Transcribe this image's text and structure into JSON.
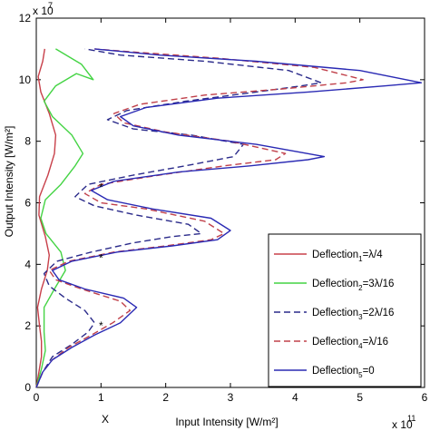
{
  "chart_data": {
    "type": "line",
    "title": "",
    "xlabel": "Input Intensity [W/m²]",
    "ylabel": "Output Intensity [W/m²]",
    "x_exponent_label": "x 10",
    "x_exponent": "11",
    "y_exponent_label": "x 10",
    "y_exponent": "7",
    "xlim": [
      0,
      6
    ],
    "ylim": [
      0,
      12
    ],
    "xticks": [
      "0",
      "1",
      "2",
      "3",
      "4",
      "5",
      "6"
    ],
    "yticks": [
      "0",
      "2",
      "4",
      "6",
      "8",
      "10",
      "12"
    ],
    "grid": false,
    "legend_position": "bottom-right",
    "extra_label": "X",
    "series": [
      {
        "name": "Deflection",
        "sub": "1",
        "suffix": "=λ/4",
        "color": "#c8404a",
        "dash": "solid",
        "points": [
          [
            0,
            0
          ],
          [
            0.04,
            0.5
          ],
          [
            0.08,
            1.0
          ],
          [
            0.08,
            1.5
          ],
          [
            0.05,
            2.0
          ],
          [
            0.02,
            2.6
          ],
          [
            0.08,
            3.2
          ],
          [
            0.17,
            3.8
          ],
          [
            0.2,
            4.3
          ],
          [
            0.14,
            4.9
          ],
          [
            0.04,
            5.6
          ],
          [
            0.05,
            6.2
          ],
          [
            0.18,
            6.9
          ],
          [
            0.28,
            7.6
          ],
          [
            0.3,
            8.2
          ],
          [
            0.2,
            8.9
          ],
          [
            0.07,
            9.6
          ],
          [
            0.03,
            10.1
          ],
          [
            0.1,
            10.6
          ],
          [
            0.13,
            11.0
          ]
        ]
      },
      {
        "name": "Deflection",
        "sub": "2",
        "suffix": "=3λ/16",
        "color": "#44d444",
        "dash": "solid",
        "points": [
          [
            0,
            0
          ],
          [
            0.08,
            0.6
          ],
          [
            0.14,
            1.2
          ],
          [
            0.12,
            1.8
          ],
          [
            0.12,
            2.6
          ],
          [
            0.28,
            3.2
          ],
          [
            0.45,
            3.8
          ],
          [
            0.38,
            4.4
          ],
          [
            0.15,
            5.0
          ],
          [
            0.07,
            5.5
          ],
          [
            0.14,
            6.1
          ],
          [
            0.38,
            6.6
          ],
          [
            0.6,
            7.2
          ],
          [
            0.72,
            7.6
          ],
          [
            0.55,
            8.2
          ],
          [
            0.25,
            8.8
          ],
          [
            0.12,
            9.3
          ],
          [
            0.3,
            9.8
          ],
          [
            0.62,
            10.2
          ],
          [
            0.88,
            10.0
          ],
          [
            0.7,
            10.5
          ],
          [
            0.3,
            11.0
          ]
        ]
      },
      {
        "name": "Deflection",
        "sub": "3",
        "suffix": "=2λ/16",
        "color": "#2a2a8a",
        "dash": "dashed",
        "points": [
          [
            0,
            0
          ],
          [
            0.1,
            0.5
          ],
          [
            0.25,
            1.0
          ],
          [
            0.55,
            1.4
          ],
          [
            0.8,
            1.8
          ],
          [
            0.9,
            2.1
          ],
          [
            0.75,
            2.5
          ],
          [
            0.45,
            2.9
          ],
          [
            0.2,
            3.3
          ],
          [
            0.12,
            3.7
          ],
          [
            0.32,
            4.1
          ],
          [
            0.85,
            4.4
          ],
          [
            1.5,
            4.7
          ],
          [
            2.1,
            4.9
          ],
          [
            2.55,
            5.0
          ],
          [
            2.35,
            5.3
          ],
          [
            1.55,
            5.6
          ],
          [
            0.9,
            5.9
          ],
          [
            0.6,
            6.2
          ],
          [
            0.8,
            6.6
          ],
          [
            1.5,
            6.9
          ],
          [
            2.3,
            7.2
          ],
          [
            3.05,
            7.5
          ],
          [
            3.2,
            7.9
          ],
          [
            2.4,
            8.2
          ],
          [
            1.5,
            8.4
          ],
          [
            1.1,
            8.7
          ],
          [
            1.4,
            9.0
          ],
          [
            2.3,
            9.3
          ],
          [
            3.4,
            9.6
          ],
          [
            4.1,
            9.8
          ],
          [
            4.4,
            9.9
          ],
          [
            3.9,
            10.3
          ],
          [
            2.6,
            10.6
          ],
          [
            1.3,
            10.8
          ],
          [
            0.75,
            11.0
          ]
        ]
      },
      {
        "name": "Deflection",
        "sub": "4",
        "suffix": "=λ/16",
        "color": "#c0404a",
        "dash": "dashed",
        "points": [
          [
            0,
            0
          ],
          [
            0.1,
            0.5
          ],
          [
            0.25,
            0.9
          ],
          [
            0.5,
            1.3
          ],
          [
            0.85,
            1.7
          ],
          [
            1.18,
            2.1
          ],
          [
            1.45,
            2.5
          ],
          [
            1.3,
            2.8
          ],
          [
            0.7,
            3.2
          ],
          [
            0.3,
            3.5
          ],
          [
            0.2,
            3.8
          ],
          [
            0.5,
            4.1
          ],
          [
            1.2,
            4.4
          ],
          [
            2.0,
            4.6
          ],
          [
            2.7,
            4.8
          ],
          [
            2.9,
            5.0
          ],
          [
            2.6,
            5.4
          ],
          [
            1.7,
            5.8
          ],
          [
            1.0,
            6.0
          ],
          [
            0.75,
            6.3
          ],
          [
            1.0,
            6.6
          ],
          [
            1.9,
            6.9
          ],
          [
            2.9,
            7.2
          ],
          [
            3.7,
            7.4
          ],
          [
            3.85,
            7.6
          ],
          [
            3.0,
            8.0
          ],
          [
            2.0,
            8.3
          ],
          [
            1.35,
            8.6
          ],
          [
            1.2,
            8.9
          ],
          [
            1.6,
            9.2
          ],
          [
            2.6,
            9.5
          ],
          [
            3.8,
            9.7
          ],
          [
            4.8,
            9.9
          ],
          [
            5.05,
            10.0
          ],
          [
            4.3,
            10.4
          ],
          [
            2.8,
            10.7
          ],
          [
            1.5,
            10.9
          ],
          [
            0.9,
            11.0
          ]
        ]
      },
      {
        "name": "Deflection",
        "sub": "5",
        "suffix": "=0",
        "color": "#2a2ab4",
        "dash": "solid",
        "points": [
          [
            0,
            0
          ],
          [
            0.1,
            0.5
          ],
          [
            0.25,
            0.9
          ],
          [
            0.55,
            1.3
          ],
          [
            0.9,
            1.7
          ],
          [
            1.3,
            2.1
          ],
          [
            1.55,
            2.6
          ],
          [
            1.35,
            2.9
          ],
          [
            0.75,
            3.2
          ],
          [
            0.35,
            3.5
          ],
          [
            0.25,
            3.8
          ],
          [
            0.55,
            4.1
          ],
          [
            1.25,
            4.4
          ],
          [
            2.1,
            4.6
          ],
          [
            2.8,
            4.8
          ],
          [
            3.0,
            5.1
          ],
          [
            2.7,
            5.5
          ],
          [
            1.8,
            5.8
          ],
          [
            1.1,
            6.1
          ],
          [
            0.85,
            6.4
          ],
          [
            1.2,
            6.7
          ],
          [
            2.2,
            7.0
          ],
          [
            3.3,
            7.2
          ],
          [
            4.2,
            7.4
          ],
          [
            4.45,
            7.5
          ],
          [
            3.4,
            7.9
          ],
          [
            2.2,
            8.2
          ],
          [
            1.5,
            8.5
          ],
          [
            1.3,
            8.8
          ],
          [
            1.7,
            9.1
          ],
          [
            2.8,
            9.4
          ],
          [
            4.2,
            9.6
          ],
          [
            5.4,
            9.8
          ],
          [
            5.95,
            9.9
          ],
          [
            5.0,
            10.3
          ],
          [
            3.4,
            10.6
          ],
          [
            1.9,
            10.8
          ],
          [
            0.9,
            11.0
          ]
        ]
      }
    ],
    "markers": {
      "symbol": "*",
      "points": [
        [
          1.0,
          2.0
        ],
        [
          1.0,
          4.2
        ],
        [
          1.0,
          6.5
        ]
      ]
    }
  }
}
